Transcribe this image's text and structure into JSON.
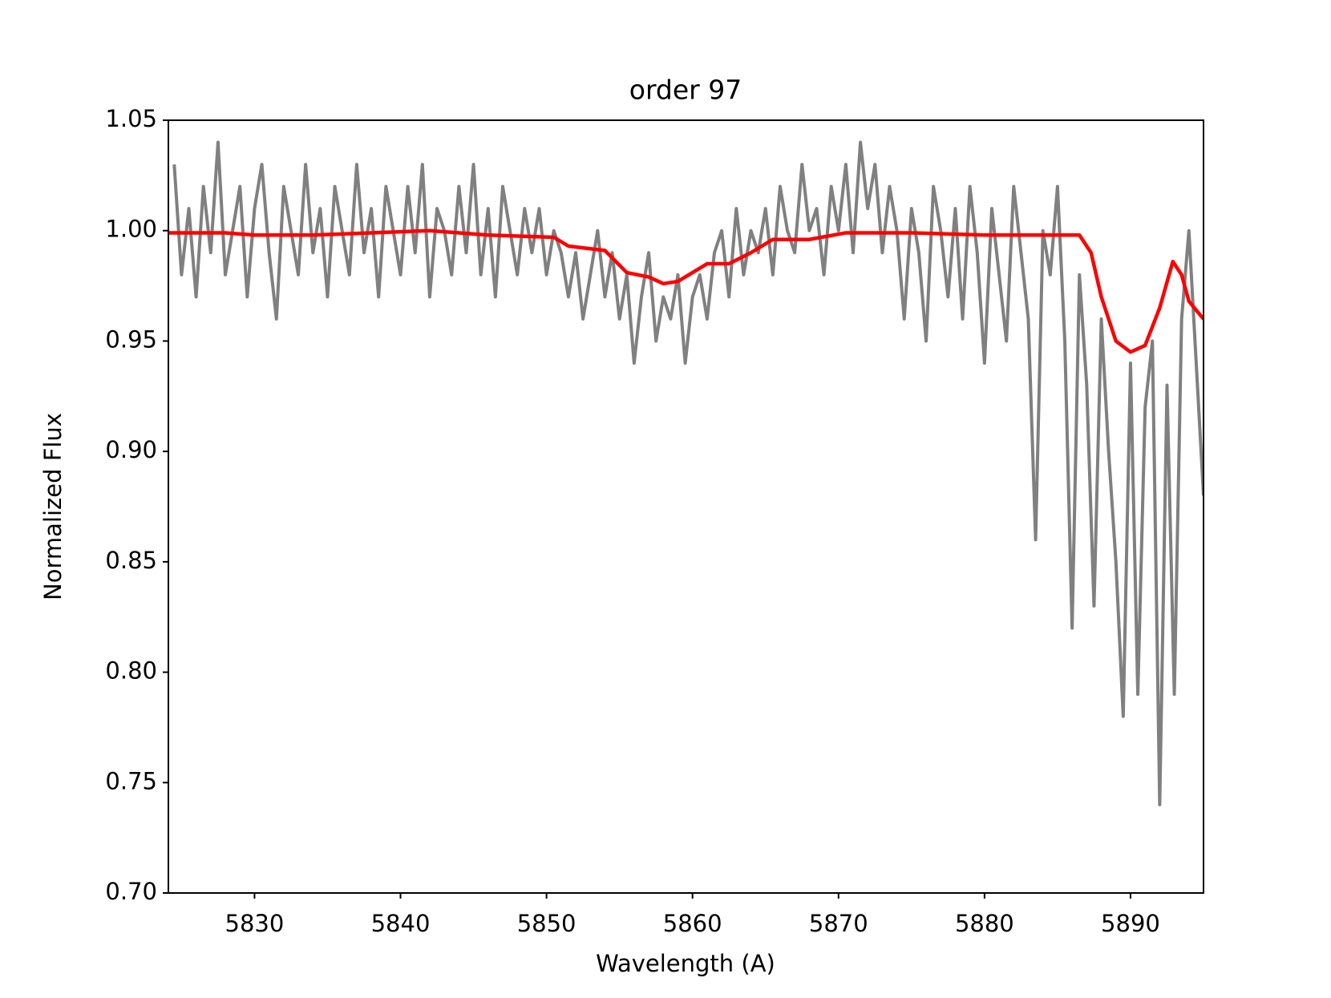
{
  "chart_data": {
    "type": "line",
    "title": "order 97",
    "xlabel": "Wavelength (A)",
    "ylabel": "Normalized Flux",
    "xlim": [
      5824.1,
      5895
    ],
    "ylim": [
      0.7,
      1.05
    ],
    "xticks": [
      5830,
      5840,
      5850,
      5860,
      5870,
      5880,
      5890
    ],
    "yticks": [
      {
        "value": 0.7,
        "label": "0.70"
      },
      0.75,
      {
        "value": 0.8,
        "label": "0.80"
      },
      0.85,
      {
        "value": 0.9,
        "label": "0.90"
      },
      0.95,
      {
        "value": 1.0,
        "label": "1.00"
      },
      1.05
    ],
    "series": [
      {
        "color": "#808080",
        "x": [
          5824.5,
          5825,
          5825.5,
          5826,
          5826.5,
          5827,
          5827.5,
          5828,
          5828.5,
          5829,
          5829.5,
          5830,
          5830.5,
          5831,
          5831.5,
          5832,
          5832.5,
          5833,
          5833.5,
          5834,
          5834.5,
          5835,
          5835.5,
          5836,
          5836.5,
          5837,
          5837.5,
          5838,
          5838.5,
          5839,
          5839.5,
          5840,
          5840.5,
          5841,
          5841.5,
          5842,
          5842.5,
          5843,
          5843.5,
          5844,
          5844.5,
          5845,
          5845.5,
          5846,
          5846.5,
          5847,
          5847.5,
          5848,
          5848.5,
          5849,
          5849.5,
          5850,
          5850.5,
          5851,
          5851.5,
          5852,
          5852.5,
          5853,
          5853.5,
          5854,
          5854.5,
          5855,
          5855.5,
          5856,
          5856.5,
          5857,
          5857.5,
          5858,
          5858.5,
          5859,
          5859.5,
          5860,
          5860.5,
          5861,
          5861.5,
          5862,
          5862.5,
          5863,
          5863.5,
          5864,
          5864.5,
          5865,
          5865.5,
          5866,
          5866.5,
          5867,
          5867.5,
          5868,
          5868.5,
          5869,
          5869.5,
          5870,
          5870.5,
          5871,
          5871.5,
          5872,
          5872.5,
          5873,
          5873.5,
          5874,
          5874.5,
          5875,
          5875.5,
          5876,
          5876.5,
          5877,
          5877.5,
          5878,
          5878.5,
          5879,
          5879.5,
          5880,
          5880.5,
          5881,
          5881.5,
          5882,
          5882.5,
          5883,
          5883.5,
          5884,
          5884.5,
          5885,
          5885.5,
          5886,
          5886.5,
          5887,
          5887.5,
          5888,
          5888.5,
          5889,
          5889.5,
          5890,
          5890.5,
          5891,
          5891.5,
          5892,
          5892.5,
          5893,
          5893.5,
          5894,
          5894.5,
          5895
        ],
        "values": [
          1.03,
          0.98,
          1.01,
          0.97,
          1.02,
          0.99,
          1.04,
          0.98,
          1.0,
          1.02,
          0.97,
          1.01,
          1.03,
          0.99,
          0.96,
          1.02,
          1.0,
          0.98,
          1.03,
          0.99,
          1.01,
          0.97,
          1.02,
          1.0,
          0.98,
          1.03,
          0.99,
          1.01,
          0.97,
          1.02,
          1.0,
          0.98,
          1.02,
          0.99,
          1.03,
          0.97,
          1.01,
          1.0,
          0.98,
          1.02,
          0.99,
          1.03,
          0.98,
          1.01,
          0.97,
          1.02,
          1.0,
          0.98,
          1.01,
          0.99,
          1.01,
          0.98,
          1.0,
          0.99,
          0.97,
          0.99,
          0.96,
          0.98,
          1.0,
          0.97,
          0.99,
          0.96,
          0.98,
          0.94,
          0.97,
          0.99,
          0.95,
          0.97,
          0.96,
          0.98,
          0.94,
          0.97,
          0.98,
          0.96,
          0.99,
          1.0,
          0.97,
          1.01,
          0.98,
          1.0,
          0.99,
          1.01,
          0.98,
          1.02,
          1.0,
          0.99,
          1.03,
          1.0,
          1.01,
          0.98,
          1.02,
          1.0,
          1.03,
          0.99,
          1.04,
          1.01,
          1.03,
          0.99,
          1.02,
          1.0,
          0.96,
          1.01,
          0.99,
          0.95,
          1.02,
          1.0,
          0.97,
          1.01,
          0.96,
          1.02,
          0.99,
          0.94,
          1.01,
          0.98,
          0.95,
          1.02,
          0.99,
          0.96,
          0.86,
          1.0,
          0.98,
          1.02,
          0.95,
          0.82,
          0.98,
          0.93,
          0.83,
          0.96,
          0.9,
          0.85,
          0.78,
          0.94,
          0.79,
          0.92,
          0.95,
          0.74,
          0.93,
          0.79,
          0.96,
          1.0,
          0.94,
          0.88
        ]
      },
      {
        "color": "#ff0000",
        "x": [
          5824.1,
          5828,
          5830,
          5834,
          5838,
          5842,
          5846,
          5850.5,
          5851.5,
          5854,
          5855.5,
          5857,
          5858,
          5859,
          5860,
          5861,
          5862.5,
          5864,
          5865.5,
          5868,
          5870.5,
          5875,
          5880,
          5886.5,
          5887.3,
          5888,
          5889,
          5890,
          5891,
          5892,
          5892.9,
          5893.5,
          5894,
          5895
        ],
        "values": [
          0.999,
          0.999,
          0.998,
          0.998,
          0.999,
          1.0,
          0.998,
          0.997,
          0.993,
          0.991,
          0.981,
          0.979,
          0.976,
          0.977,
          0.981,
          0.985,
          0.985,
          0.99,
          0.996,
          0.996,
          0.999,
          0.999,
          0.998,
          0.998,
          0.99,
          0.97,
          0.95,
          0.945,
          0.948,
          0.965,
          0.986,
          0.98,
          0.968,
          0.96
        ]
      }
    ]
  }
}
